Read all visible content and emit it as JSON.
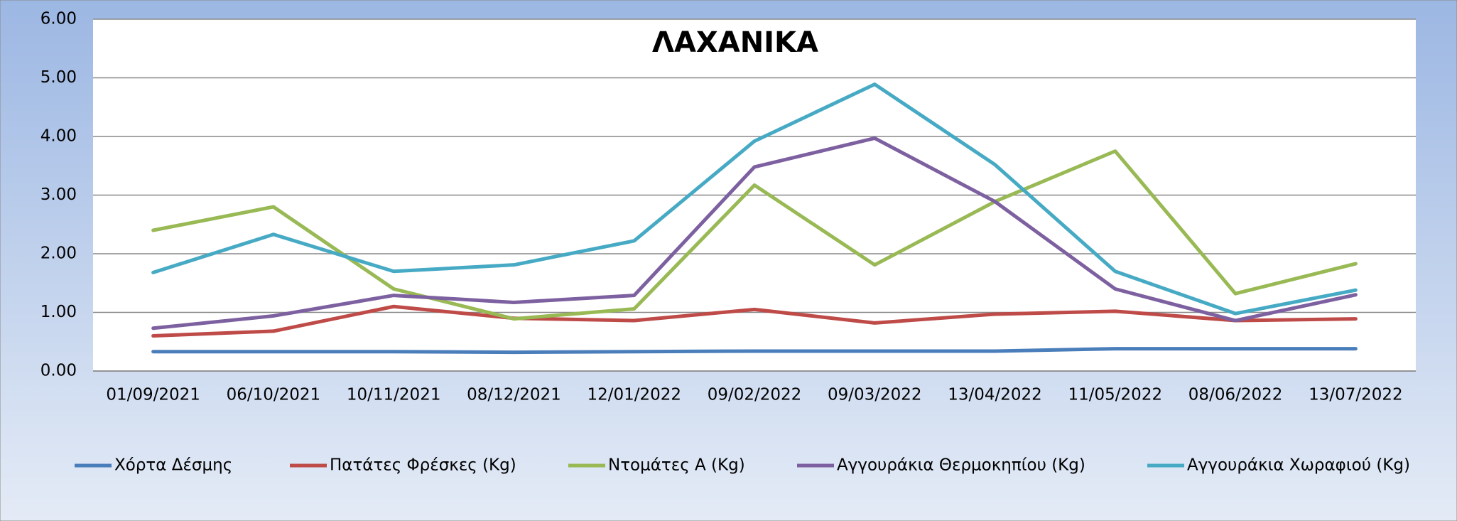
{
  "chart_data": {
    "type": "line",
    "title": "ΛΑΧΑΝΙΚΑ",
    "categories": [
      "01/09/2021",
      "06/10/2021",
      "10/11/2021",
      "08/12/2021",
      "12/01/2022",
      "09/02/2022",
      "09/03/2022",
      "13/04/2022",
      "11/05/2022",
      "08/06/2022",
      "13/07/2022"
    ],
    "series": [
      {
        "name": "Χόρτα Δέσμης",
        "color": "#4a7ebb",
        "values": [
          0.33,
          0.33,
          0.33,
          0.32,
          0.33,
          0.34,
          0.34,
          0.34,
          0.38,
          0.38,
          0.38
        ]
      },
      {
        "name": "Πατάτες Φρέσκες (Kg)",
        "color": "#be4b48",
        "values": [
          0.6,
          0.68,
          1.1,
          0.9,
          0.86,
          1.05,
          0.82,
          0.97,
          1.02,
          0.86,
          0.89
        ]
      },
      {
        "name": "Ντομάτες Α (Kg)",
        "color": "#98b954",
        "values": [
          2.4,
          2.8,
          1.4,
          0.89,
          1.06,
          3.17,
          1.81,
          2.89,
          3.75,
          1.32,
          1.83
        ]
      },
      {
        "name": "Αγγουράκια Θερμοκηπίου (Kg)",
        "color": "#7d60a0",
        "values": [
          0.73,
          0.94,
          1.29,
          1.17,
          1.29,
          3.48,
          3.97,
          2.89,
          1.4,
          0.86,
          1.3
        ]
      },
      {
        "name": "Αγγουράκια Χωραφιού (Kg)",
        "color": "#46aac5",
        "values": [
          1.68,
          2.33,
          1.7,
          1.81,
          2.22,
          3.92,
          4.89,
          3.52,
          1.7,
          0.98,
          1.38
        ]
      }
    ],
    "ylim": [
      0,
      6
    ],
    "yticks": [
      {
        "value": 0,
        "label": "0.00"
      },
      {
        "value": 1,
        "label": "1.00"
      },
      {
        "value": 2,
        "label": "2.00"
      },
      {
        "value": 3,
        "label": "3.00"
      },
      {
        "value": 4,
        "label": "4.00"
      },
      {
        "value": 5,
        "label": "5.00"
      },
      {
        "value": 6,
        "label": "6.00"
      }
    ],
    "grid": true,
    "legend": "bottom"
  }
}
